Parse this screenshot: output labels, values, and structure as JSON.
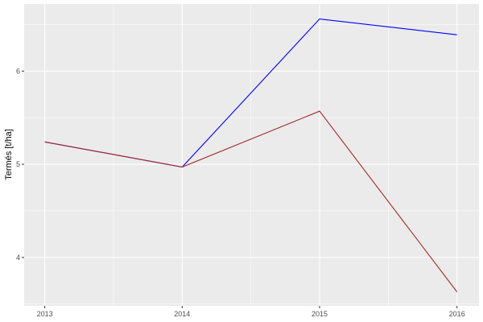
{
  "chart_data": {
    "type": "line",
    "title": "",
    "xlabel": "",
    "ylabel": "Termés [t/ha]",
    "x": [
      2013,
      2014,
      2015,
      2016
    ],
    "xticks": [
      "2013",
      "2014",
      "2015",
      "2016"
    ],
    "yticks": [
      "4",
      "5",
      "6"
    ],
    "xlim": [
      2012.85,
      2016.16
    ],
    "ylim": [
      3.48,
      6.72
    ],
    "grid": true,
    "series": [
      {
        "color": "#0000ff",
        "values": [
          5.24,
          4.97,
          6.56,
          6.39
        ]
      },
      {
        "color": "#a52a2a",
        "values": [
          5.24,
          4.97,
          5.57,
          3.63
        ]
      }
    ]
  }
}
